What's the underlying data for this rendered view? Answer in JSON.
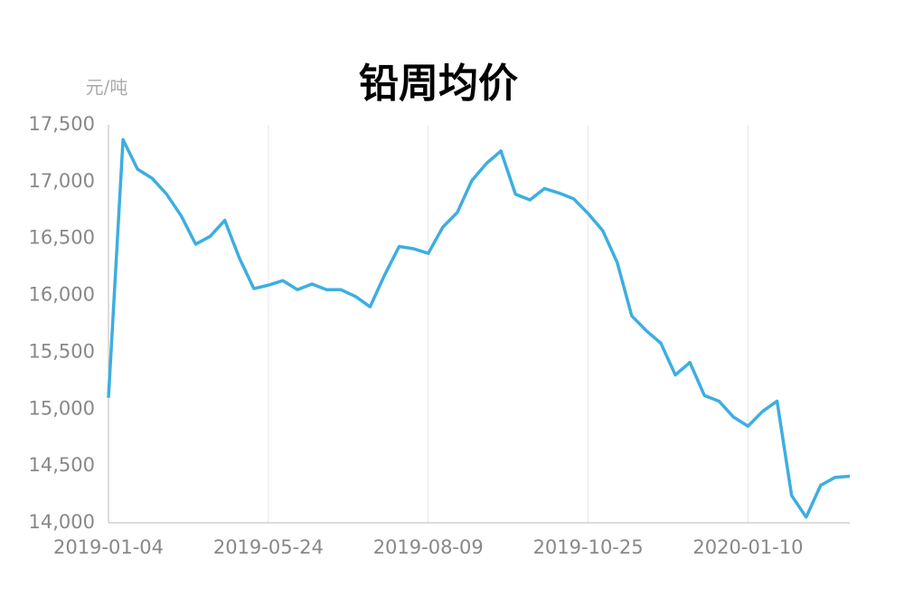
{
  "chart_data": {
    "type": "line",
    "title": "铅周均价",
    "y_unit": "元/吨",
    "categories": [
      "2019-01-04",
      null,
      null,
      null,
      null,
      null,
      null,
      null,
      null,
      null,
      null,
      "2019-05-24",
      null,
      null,
      null,
      null,
      null,
      null,
      null,
      null,
      null,
      null,
      "2019-08-09",
      null,
      null,
      null,
      null,
      null,
      null,
      null,
      null,
      null,
      null,
      "2019-10-25",
      null,
      null,
      null,
      null,
      null,
      null,
      null,
      null,
      null,
      null,
      "2020-01-10",
      null,
      null,
      null,
      null,
      null,
      null,
      null
    ],
    "series": [
      {
        "name": "铅周均价",
        "color": "#3daee0",
        "values": [
          15100,
          17370,
          17110,
          17030,
          16890,
          16700,
          16450,
          16520,
          16660,
          16330,
          16060,
          16090,
          16130,
          16050,
          16100,
          16050,
          16050,
          15990,
          15900,
          16180,
          16430,
          16410,
          16370,
          16600,
          16730,
          17010,
          17160,
          17270,
          16890,
          16840,
          16940,
          16900,
          16850,
          16720,
          16570,
          16290,
          15820,
          15690,
          15580,
          15300,
          15410,
          15120,
          15070,
          14930,
          14850,
          14980,
          15070,
          14240,
          14050,
          14330,
          14400,
          14410
        ]
      }
    ],
    "ylim": [
      14000,
      17500
    ],
    "yticks": [
      {
        "value": 14000,
        "label": "14,000"
      },
      {
        "value": 14500,
        "label": "14,500"
      },
      {
        "value": 15000,
        "label": "15,000"
      },
      {
        "value": 15500,
        "label": "15,500"
      },
      {
        "value": 16000,
        "label": "16,000"
      },
      {
        "value": 16500,
        "label": "16,500"
      },
      {
        "value": 17000,
        "label": "17,000"
      },
      {
        "value": 17500,
        "label": "17,500"
      }
    ],
    "grid": "vertical",
    "legend": false
  }
}
